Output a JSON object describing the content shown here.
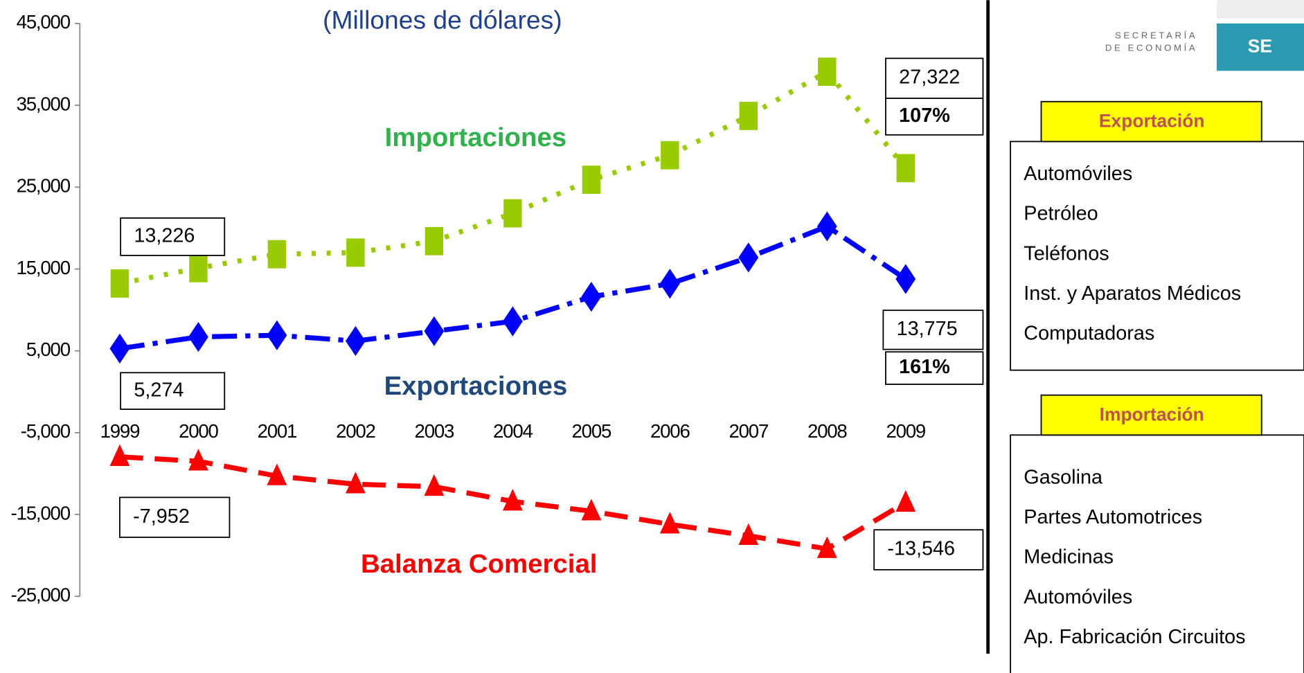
{
  "chart_data": {
    "type": "line",
    "subtitle": "(Millones de dólares)",
    "categories": [
      "1999",
      "2000",
      "2001",
      "2002",
      "2003",
      "2004",
      "2005",
      "2006",
      "2007",
      "2008",
      "2009"
    ],
    "series": [
      {
        "name": "Importaciones",
        "color": "#99cc00",
        "marker": "square",
        "values": [
          13226,
          15100,
          16800,
          17000,
          18400,
          21800,
          25900,
          28900,
          33700,
          39100,
          27322
        ],
        "value_labels": [
          "13,226",
          null,
          null,
          null,
          null,
          null,
          null,
          null,
          null,
          null,
          "27,322"
        ]
      },
      {
        "name": "Exportaciones",
        "color": "#0000ff",
        "marker": "diamond",
        "values": [
          5274,
          6700,
          6900,
          6200,
          7400,
          8600,
          11600,
          13200,
          16400,
          20200,
          13775
        ],
        "value_labels": [
          "5,274",
          null,
          null,
          null,
          null,
          null,
          null,
          null,
          null,
          null,
          "13,775"
        ]
      },
      {
        "name": "Balanza Comercial",
        "color": "#ff0000",
        "marker": "triangle",
        "values": [
          -7952,
          -8500,
          -10300,
          -11300,
          -11600,
          -13400,
          -14600,
          -16200,
          -17600,
          -19200,
          -13546
        ],
        "value_labels": [
          "-7,952",
          null,
          null,
          null,
          null,
          null,
          null,
          null,
          null,
          null,
          "-13,546"
        ]
      }
    ],
    "annotations": [
      "107%",
      "161%"
    ],
    "ylim": [
      -25000,
      45000
    ],
    "yticks": [
      {
        "value": 45000,
        "label": "45,000"
      },
      {
        "value": 35000,
        "label": "35,000"
      },
      {
        "value": 25000,
        "label": "25,000"
      },
      {
        "value": 15000,
        "label": "15,000"
      },
      {
        "value": 5000,
        "label": "5,000"
      },
      {
        "value": -5000,
        "label": "-5,000"
      },
      {
        "value": -15000,
        "label": "-15,000"
      },
      {
        "value": -25000,
        "label": "-25,000"
      }
    ],
    "grid": false
  },
  "logo": {
    "line1": "SECRETARÍA",
    "line2": "DE ECONOMÍA",
    "initials": "SE"
  },
  "exports_panel": {
    "title": "Exportación",
    "items": [
      "Automóviles",
      "Petróleo",
      "Teléfonos",
      "Inst. y Aparatos Médicos",
      "Computadoras"
    ]
  },
  "imports_panel": {
    "title": "Importación",
    "items": [
      "Gasolina",
      "Partes Automotrices",
      "Medicinas",
      "Automóviles",
      "Ap. Fabricación Circuitos"
    ]
  }
}
